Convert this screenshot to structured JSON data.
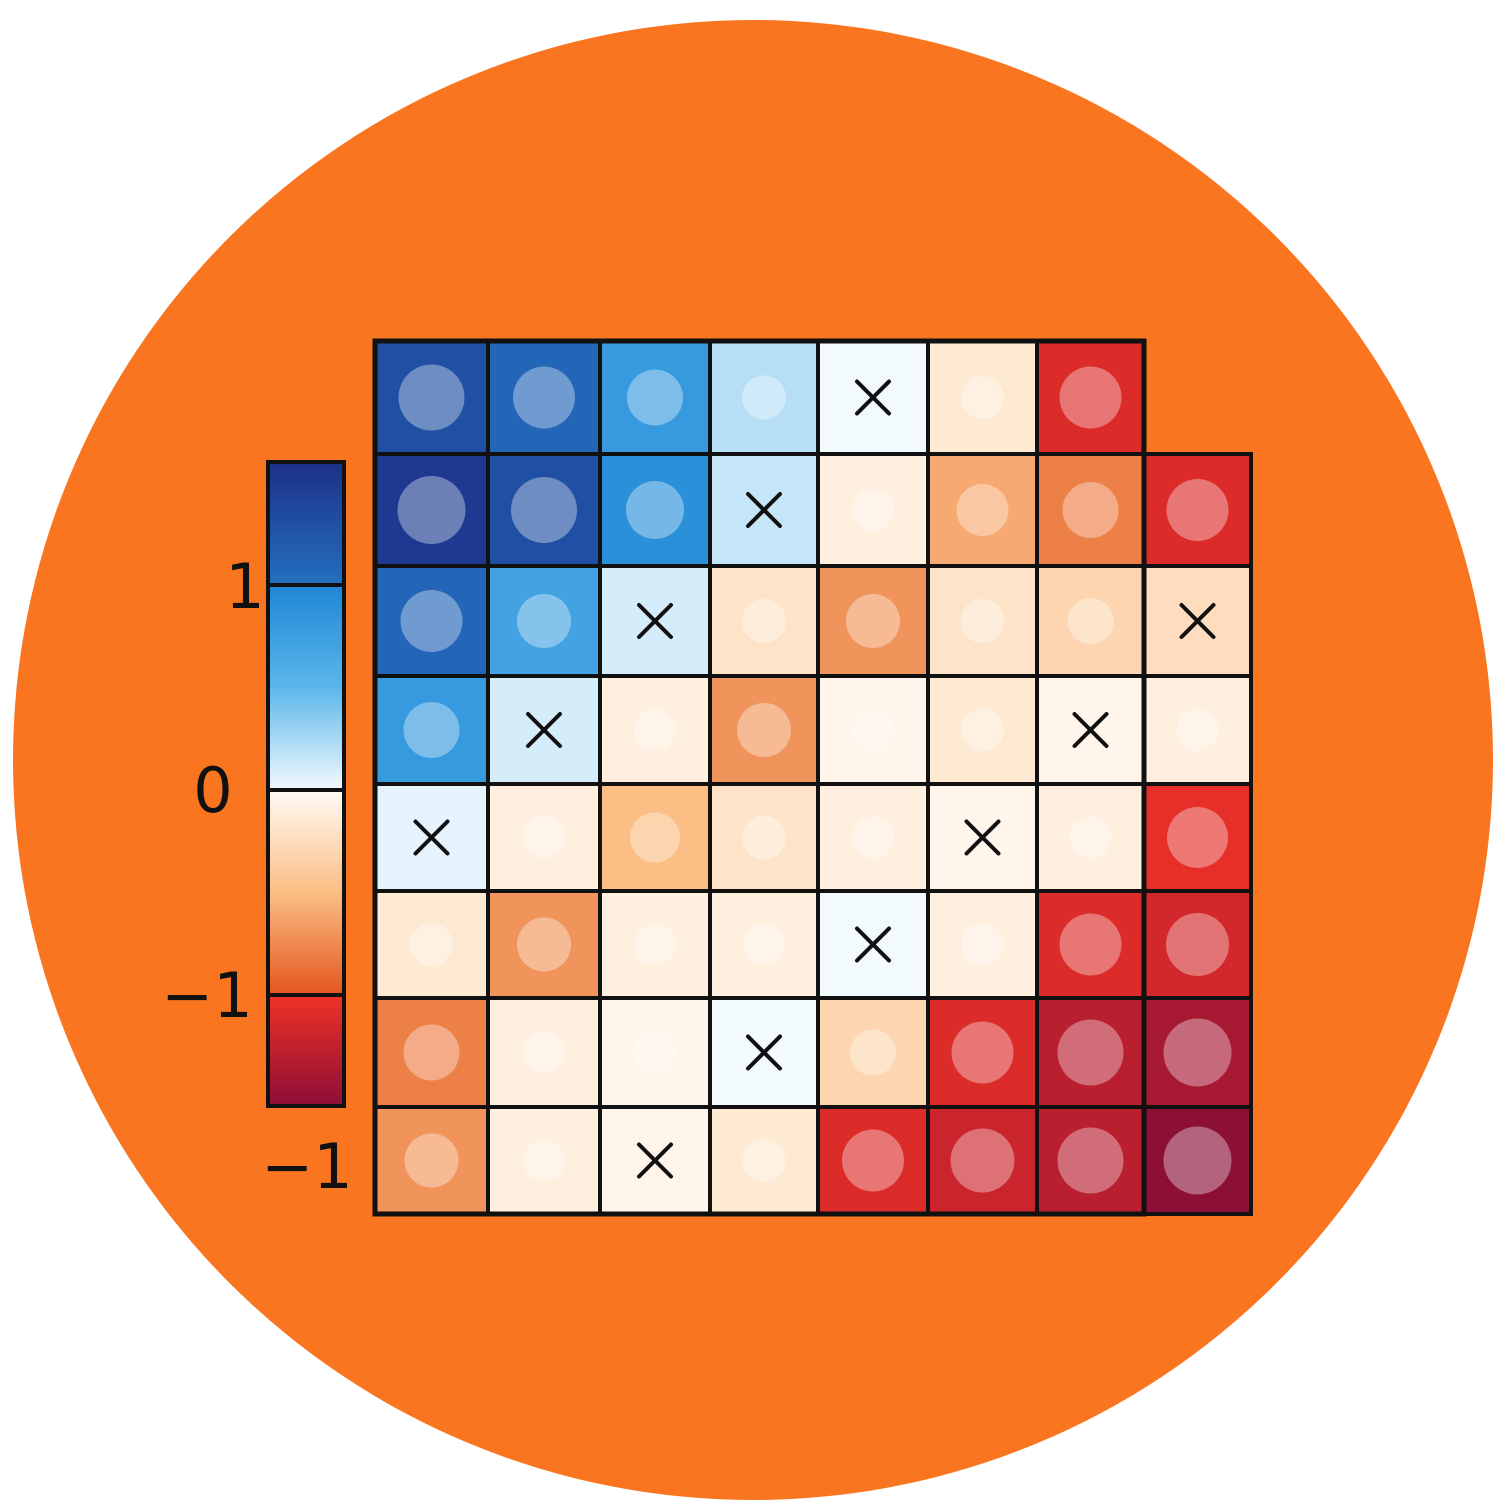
{
  "colors": {
    "background_circle": "#FA7520",
    "grid_line": "#111111"
  },
  "chart_data": {
    "type": "heatmap",
    "title": "",
    "colorbar": {
      "ticks": [
        {
          "label": "1",
          "value": 1
        },
        {
          "label": "0",
          "value": 0
        },
        {
          "label": "−1",
          "value": -1
        }
      ],
      "extra_label": "−1",
      "range": [
        -1.55,
        1.6
      ],
      "stops": [
        {
          "v": 1.6,
          "c": "#1C2F86"
        },
        {
          "v": 1.0,
          "c": "#2470C0"
        },
        {
          "v": 1.0,
          "c": "#1F86D6"
        },
        {
          "v": 0.5,
          "c": "#5BB7EA"
        },
        {
          "v": 0.0,
          "c": "#F3FAFE"
        },
        {
          "v": 0.0,
          "c": "#FFFBF5"
        },
        {
          "v": -0.5,
          "c": "#FBBE84"
        },
        {
          "v": -1.0,
          "c": "#E3561E"
        },
        {
          "v": -1.0,
          "c": "#EE3227"
        },
        {
          "v": -1.55,
          "c": "#8C0F36"
        }
      ]
    },
    "rows": 8,
    "cols": 8,
    "values": [
      [
        1.3,
        1.1,
        0.8,
        0.2,
        0.0,
        -0.15,
        -1.1,
        null
      ],
      [
        1.5,
        1.3,
        0.9,
        0.15,
        -0.1,
        -0.6,
        -0.8,
        -1.1
      ],
      [
        1.1,
        0.7,
        0.1,
        -0.2,
        -0.7,
        -0.2,
        -0.3,
        -0.25
      ],
      [
        0.8,
        0.1,
        -0.1,
        -0.7,
        -0.05,
        -0.15,
        -0.05,
        -0.1
      ],
      [
        0.05,
        -0.1,
        -0.5,
        -0.2,
        -0.1,
        -0.05,
        -0.1,
        -1.05
      ],
      [
        -0.15,
        -0.7,
        -0.1,
        -0.1,
        0.0,
        -0.1,
        -1.1,
        -1.15
      ],
      [
        -0.8,
        -0.1,
        -0.05,
        0.0,
        -0.3,
        -1.1,
        -1.3,
        -1.4
      ],
      [
        -0.7,
        -0.1,
        -0.05,
        -0.15,
        -1.1,
        -1.2,
        -1.3,
        -1.55
      ]
    ],
    "markers": [
      [
        "circle",
        "circle",
        "circle",
        "circle",
        "x",
        "circle",
        "circle",
        null
      ],
      [
        "circle",
        "circle",
        "circle",
        "x",
        "circle",
        "circle",
        "circle",
        "circle"
      ],
      [
        "circle",
        "circle",
        "x",
        "circle",
        "circle",
        "circle",
        "circle",
        "x"
      ],
      [
        "circle",
        "x",
        "circle",
        "circle",
        "circle",
        "circle",
        "x",
        "circle"
      ],
      [
        "x",
        "circle",
        "circle",
        "circle",
        "circle",
        "x",
        "circle",
        "circle"
      ],
      [
        "circle",
        "circle",
        "circle",
        "circle",
        "x",
        "circle",
        "circle",
        "circle"
      ],
      [
        "circle",
        "circle",
        "circle",
        "x",
        "circle",
        "circle",
        "circle",
        "circle"
      ],
      [
        "circle",
        "circle",
        "x",
        "circle",
        "circle",
        "circle",
        "circle",
        "circle"
      ]
    ]
  }
}
